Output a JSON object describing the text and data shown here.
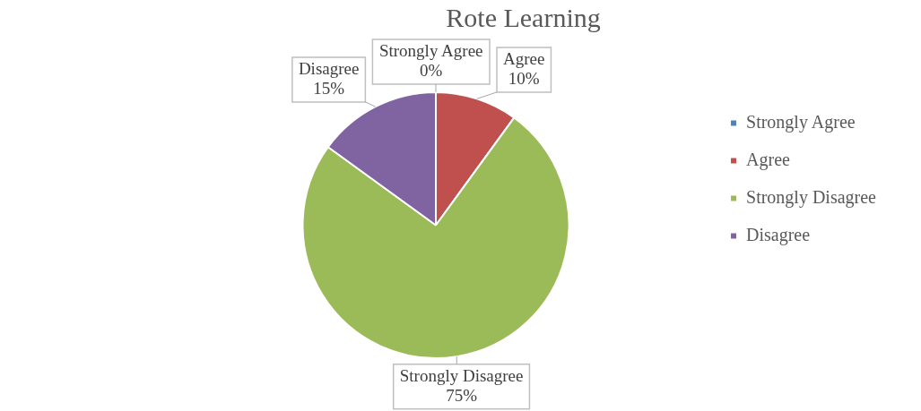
{
  "chart_data": {
    "type": "pie",
    "title": "Rote Learning",
    "categories": [
      "Strongly Agree",
      "Agree",
      "Strongly Disagree",
      "Disagree"
    ],
    "values": [
      0,
      10,
      75,
      15
    ],
    "colors": [
      "#4f81bd",
      "#c0504d",
      "#9bbb59",
      "#8064a2"
    ],
    "value_labels": [
      "0%",
      "10%",
      "75%",
      "15%"
    ],
    "legend": "right"
  }
}
